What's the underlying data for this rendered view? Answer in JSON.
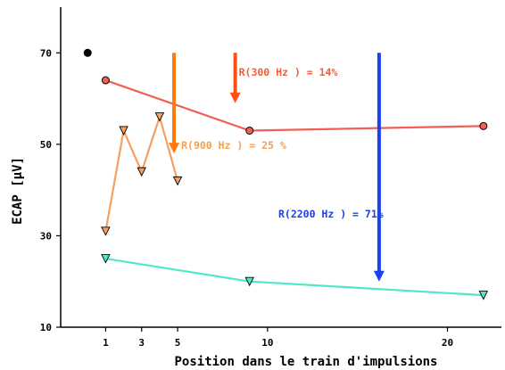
{
  "chart_data": {
    "type": "line",
    "title": "",
    "xlabel": "Position dans le train d'impulsions",
    "ylabel": "ECAP [µV]",
    "xlim": [
      -1.5,
      23
    ],
    "ylim": [
      10,
      80
    ],
    "xticks": [
      1,
      3,
      5,
      10,
      20
    ],
    "xtick_labels": [
      "1",
      "3",
      "5",
      "10",
      "20"
    ],
    "yticks": [
      10,
      30,
      50,
      70
    ],
    "ytick_labels": [
      "10",
      "30",
      "50",
      "70"
    ],
    "grid": false,
    "legend": "none",
    "series": [
      {
        "key": "reference",
        "color": "#000000",
        "marker": "circle",
        "line": false,
        "x": [
          0
        ],
        "y": [
          70
        ]
      },
      {
        "key": "r300",
        "color": "#f06055",
        "marker": "circle",
        "line": true,
        "x": [
          1,
          9,
          22
        ],
        "y": [
          64,
          53,
          54
        ]
      },
      {
        "key": "r900",
        "color": "#f5a060",
        "marker": "triangle-down",
        "line": true,
        "x": [
          1,
          2,
          3,
          4,
          5
        ],
        "y": [
          31,
          53,
          44,
          56,
          42
        ]
      },
      {
        "key": "r2200",
        "color": "#50e8c8",
        "marker": "triangle-down",
        "line": true,
        "x": [
          1,
          9,
          22
        ],
        "y": [
          25,
          20,
          17
        ]
      }
    ],
    "arrows": [
      {
        "key": "arrow900",
        "color": "#ff7a10",
        "x": 4.8,
        "y_start": 70,
        "y_end": 48
      },
      {
        "key": "arrow300",
        "color": "#ff5010",
        "x": 8.2,
        "y_start": 70,
        "y_end": 59
      },
      {
        "key": "arrow2200",
        "color": "#1a40f0",
        "x": 16.2,
        "y_start": 70,
        "y_end": 20
      }
    ],
    "annotations": [
      {
        "key": "ann300",
        "text": "R(300 Hz ) = 14%",
        "color": "#f06038",
        "x": 8.4,
        "y": 65
      },
      {
        "key": "ann900",
        "text": "R(900 Hz ) = 25 %",
        "color": "#f5a050",
        "x": 5.2,
        "y": 49
      },
      {
        "key": "ann2200",
        "text": "R(2200 Hz ) = 71%",
        "color": "#1a40f0",
        "x": 10.6,
        "y": 34
      }
    ]
  }
}
